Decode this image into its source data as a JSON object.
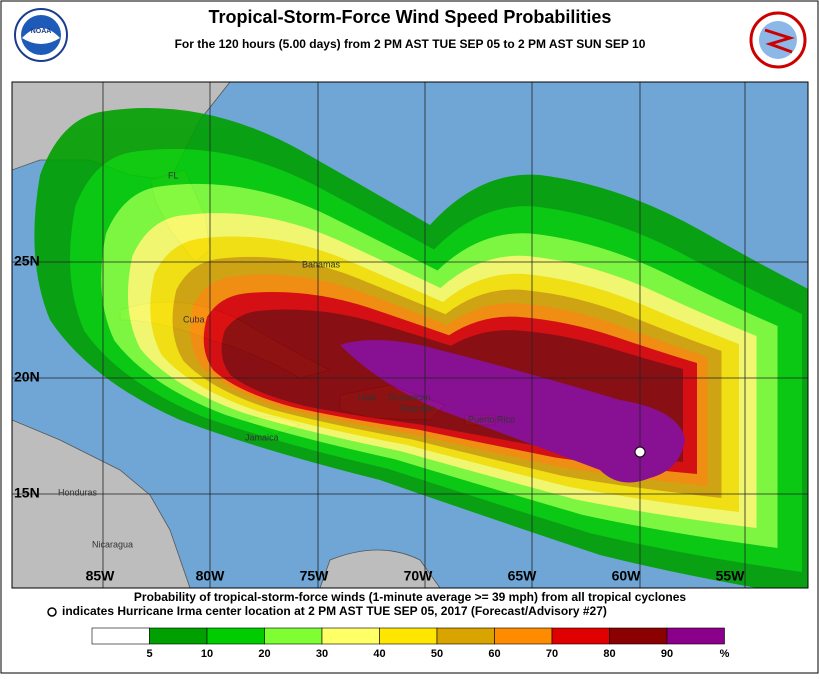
{
  "header": {
    "title": "Tropical-Storm-Force Wind Speed Probabilities",
    "subtitle": "For the 120 hours (5.00 days) from 2 PM AST TUE SEP 05 to 2 PM AST SUN SEP 10"
  },
  "map": {
    "longitude_labels": [
      "85W",
      "80W",
      "75W",
      "70W",
      "65W",
      "60W",
      "55W"
    ],
    "latitude_labels": [
      "25N",
      "20N",
      "15N"
    ],
    "places": [
      "FL",
      "Bahamas",
      "Cuba",
      "Haiti",
      "Dominican",
      "Republic",
      "Puerto Rico",
      "Jamaica",
      "Honduras",
      "Nicaragua"
    ]
  },
  "caption": [
    "Probability of tropical-storm-force winds (1-minute average >= 39 mph) from all tropical cyclones",
    "indicates Hurricane Irma center location at 2 PM AST TUE SEP 05, 2017 (Forecast/Advisory #27)"
  ],
  "legend": {
    "labels": [
      "5",
      "10",
      "20",
      "30",
      "40",
      "50",
      "60",
      "70",
      "80",
      "90",
      "%"
    ]
  }
}
